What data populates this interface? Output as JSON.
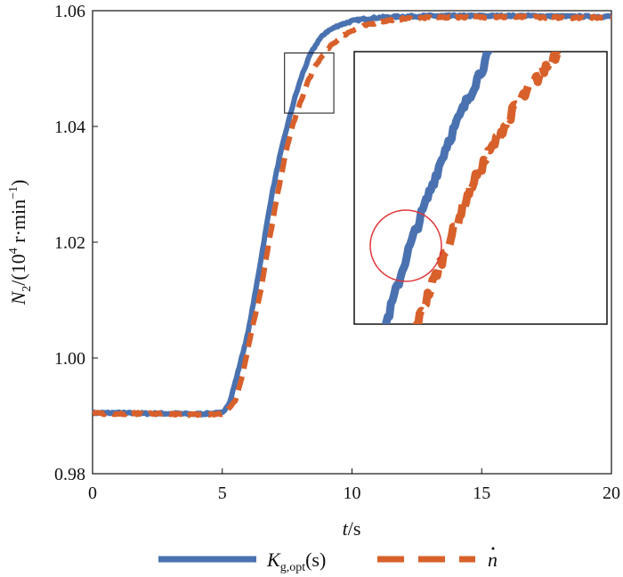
{
  "chart_data": {
    "type": "line",
    "ylabel": {
      "main": "N",
      "sub": "2",
      "mid": "/(10",
      "sup": "4",
      "unit": " r·min",
      "supneg": "−1",
      "close": ")"
    },
    "xlabel": {
      "italic": "t",
      "rest": "/s"
    },
    "xlim": [
      0,
      20
    ],
    "ylim": [
      0.98,
      1.06
    ],
    "xticks": [
      0,
      5,
      10,
      15,
      20
    ],
    "xtick_labels": [
      "0",
      "5",
      "10",
      "15",
      "20"
    ],
    "yticks": [
      0.98,
      1.0,
      1.02,
      1.04,
      1.06
    ],
    "ytick_labels": [
      "0.98",
      "1.00",
      "1.02",
      "1.04",
      "1.06"
    ],
    "grid": false,
    "legend_position": "bottom",
    "series": [
      {
        "legend": {
          "main": "K",
          "sub": "g,opt",
          "rest": "(s)"
        },
        "color": "#4a72b0",
        "style": "solid",
        "x": [
          0,
          1,
          2,
          3,
          4,
          5,
          5.3,
          5.6,
          6.0,
          6.3,
          6.6,
          6.9,
          7.2,
          7.5,
          7.8,
          8.1,
          8.4,
          8.7,
          9.0,
          9.5,
          10,
          10.5,
          11,
          12,
          13,
          14,
          15,
          16,
          17,
          18,
          19,
          20
        ],
        "y": [
          0.9905,
          0.9905,
          0.9904,
          0.9904,
          0.9903,
          0.9905,
          0.9925,
          0.9975,
          1.0045,
          1.012,
          1.02,
          1.028,
          1.0345,
          1.04,
          1.045,
          1.0492,
          1.0525,
          1.0548,
          1.0563,
          1.0575,
          1.0582,
          1.0586,
          1.0588,
          1.059,
          1.0591,
          1.0591,
          1.0591,
          1.0591,
          1.0591,
          1.059,
          1.059,
          1.059
        ]
      },
      {
        "legend": {
          "dot": "n"
        },
        "color": "#d8602b",
        "style": "dashed",
        "x": [
          0,
          1,
          2,
          3,
          4,
          5,
          5.5,
          5.8,
          6.1,
          6.5,
          6.8,
          7.1,
          7.4,
          7.7,
          8.0,
          8.3,
          8.6,
          8.9,
          9.2,
          9.6,
          10,
          10.5,
          11,
          11.5,
          12,
          13,
          14,
          15,
          16,
          17,
          18,
          19,
          20
        ],
        "y": [
          0.9904,
          0.9904,
          0.9904,
          0.9903,
          0.9902,
          0.9903,
          0.9925,
          0.9975,
          1.004,
          1.012,
          1.02,
          1.0275,
          1.0345,
          1.04,
          1.044,
          1.0478,
          1.0505,
          1.0525,
          1.054,
          1.0555,
          1.0566,
          1.0574,
          1.058,
          1.0584,
          1.0586,
          1.0588,
          1.0589,
          1.0589,
          1.0589,
          1.0589,
          1.0588,
          1.0588,
          1.0588
        ]
      }
    ],
    "inset": {
      "source_xlim": [
        7.4,
        9.3
      ],
      "source_ylim": [
        1.0423,
        1.0527
      ],
      "highlight": "circle"
    }
  }
}
